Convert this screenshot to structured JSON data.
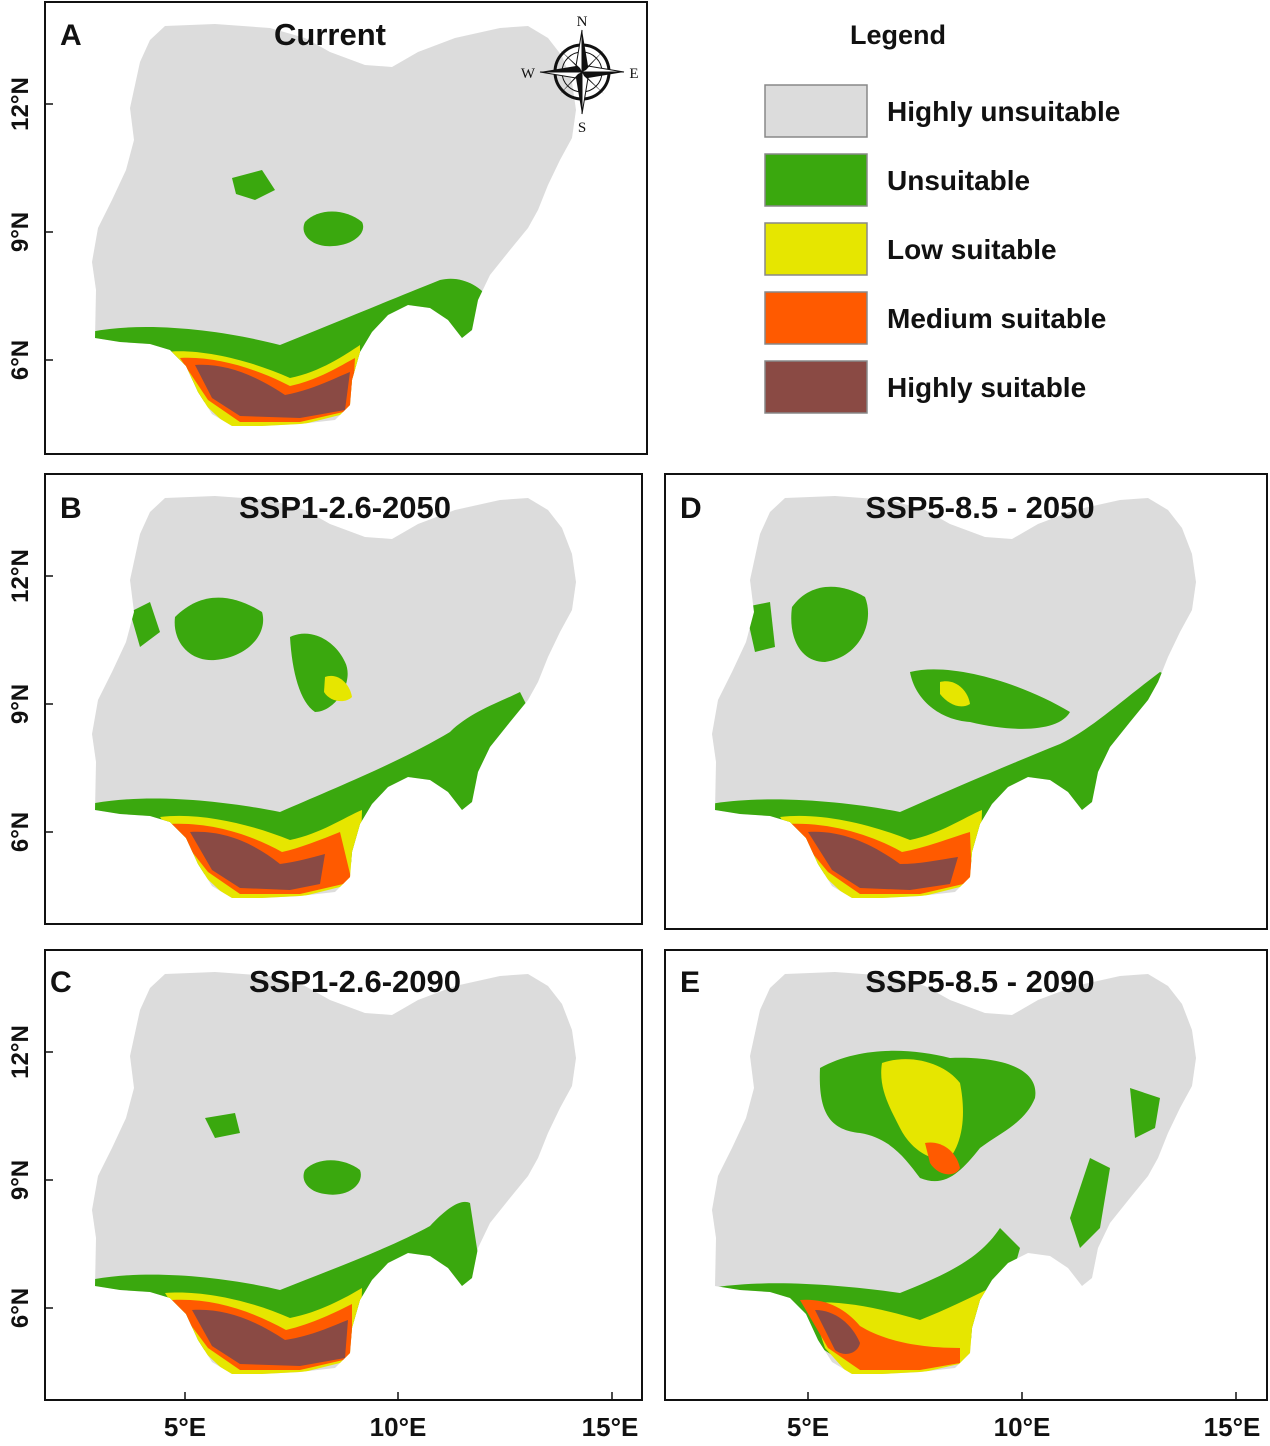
{
  "figure": {
    "panels": [
      {
        "id": "A",
        "letter": "A",
        "title": "Current"
      },
      {
        "id": "B",
        "letter": "B",
        "title": "SSP1-2.6-2050"
      },
      {
        "id": "C",
        "letter": "C",
        "title": "SSP1-2.6-2090"
      },
      {
        "id": "D",
        "letter": "D",
        "title": "SSP5-8.5 - 2050"
      },
      {
        "id": "E",
        "letter": "E",
        "title": "SSP5-8.5 - 2090"
      }
    ],
    "lat_labels": [
      "12°N",
      "9°N",
      "6°N"
    ],
    "lon_labels": [
      "5°E",
      "10°E",
      "15°E"
    ],
    "compass": {
      "n": "N",
      "s": "S",
      "e": "E",
      "w": "W"
    }
  },
  "legend": {
    "title": "Legend",
    "items": [
      {
        "label": "Highly unsuitable",
        "color": "#dcdcdc"
      },
      {
        "label": "Unsuitable",
        "color": "#3aa80e"
      },
      {
        "label": "Low suitable",
        "color": "#e6e600"
      },
      {
        "label": "Medium suitable",
        "color": "#ff5a00"
      },
      {
        "label": "Highly suitable",
        "color": "#8a4a44"
      }
    ]
  }
}
